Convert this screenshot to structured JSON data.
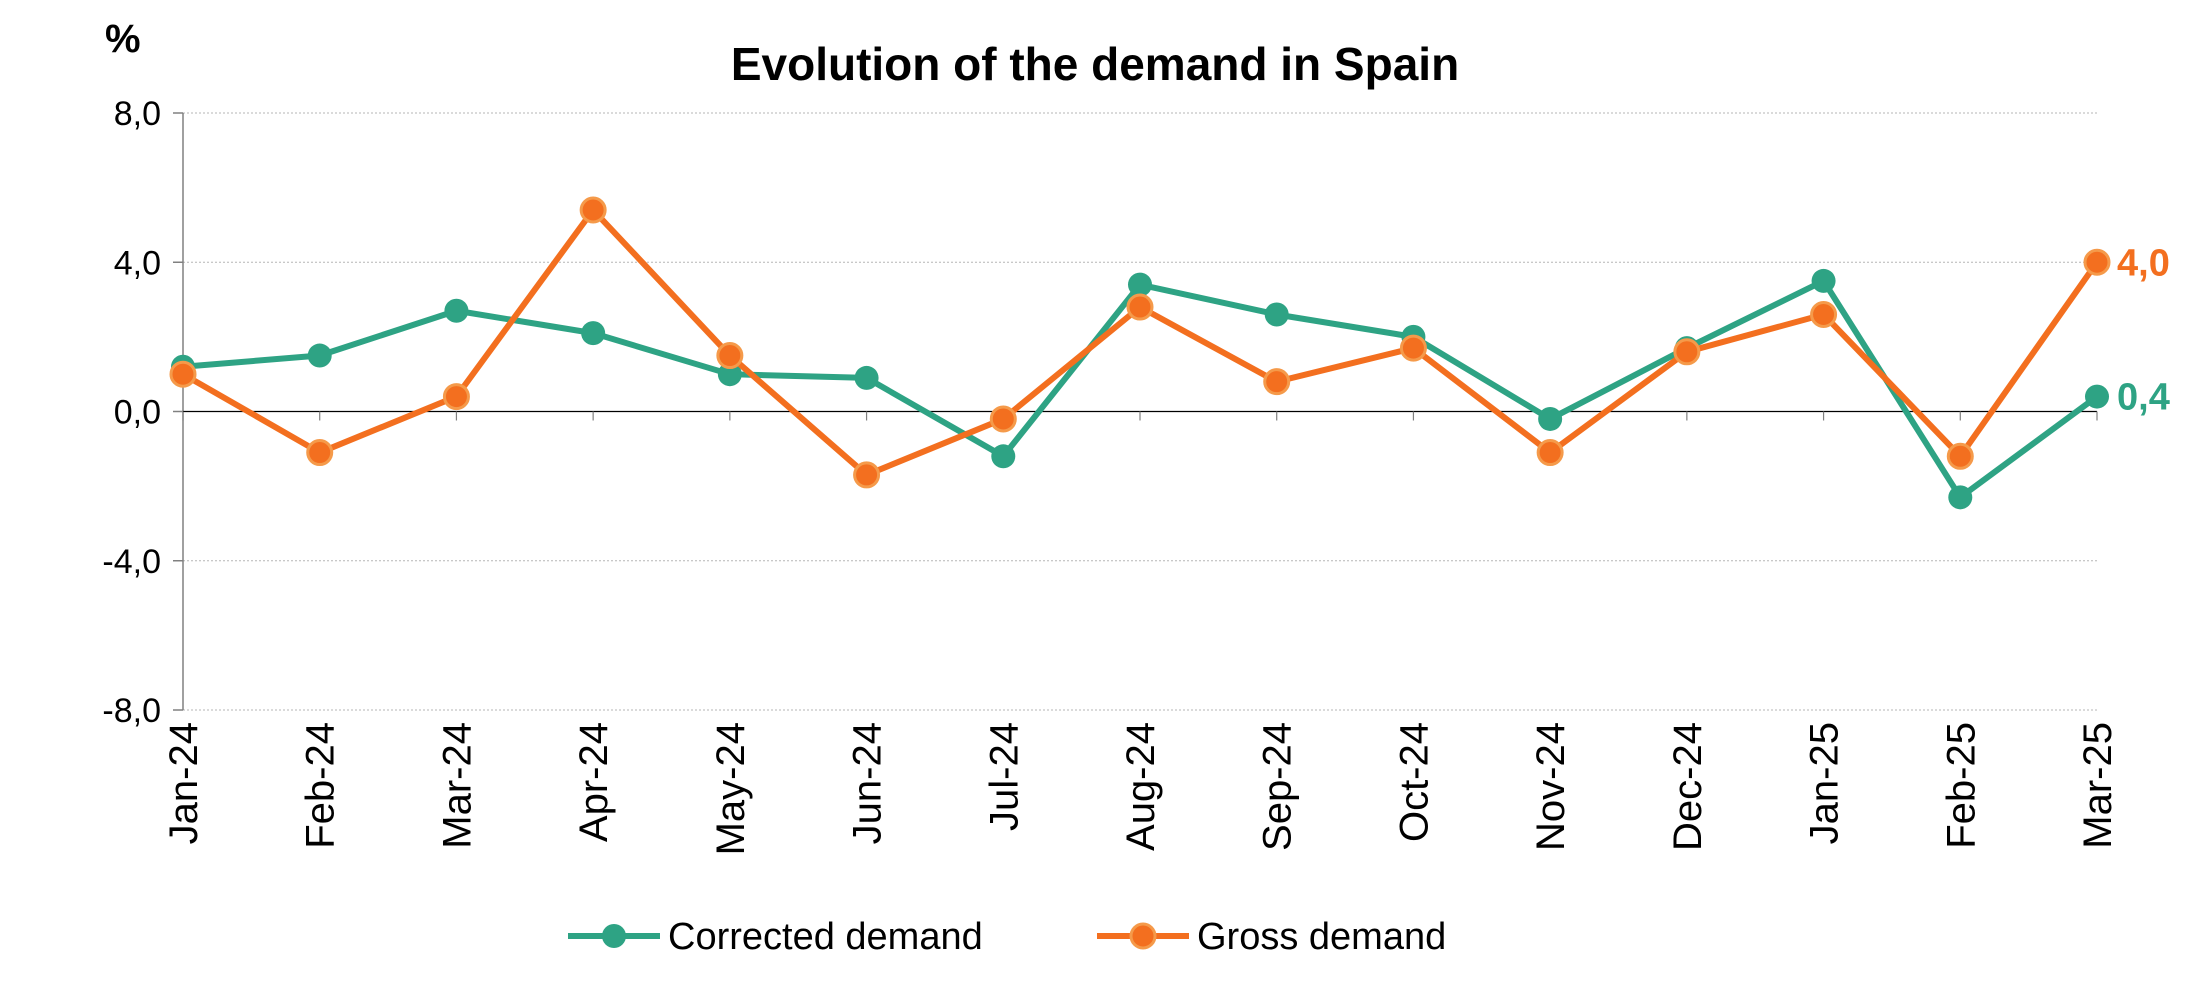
{
  "chart_data": {
    "type": "line",
    "title": "Evolution of the demand in Spain",
    "unit_label": "%",
    "xlabel": "",
    "ylabel": "",
    "ylim": [
      -8,
      8
    ],
    "yticks": [
      8,
      4,
      0,
      -4,
      -8
    ],
    "ytick_labels": [
      "8,0",
      "4,0",
      "0,0",
      "-4,0",
      "-8,0"
    ],
    "categories": [
      "Jan-24",
      "Feb-24",
      "Mar-24",
      "Apr-24",
      "May-24",
      "Jun-24",
      "Jul-24",
      "Aug-24",
      "Sep-24",
      "Oct-24",
      "Nov-24",
      "Dec-24",
      "Jan-25",
      "Feb-25",
      "Mar-25"
    ],
    "grid": true,
    "legend_position": "bottom-center",
    "series": [
      {
        "name": "Corrected demand",
        "color": "#2ea384",
        "values": [
          1.2,
          1.5,
          2.7,
          2.1,
          1.0,
          0.9,
          -1.2,
          3.4,
          2.6,
          2.0,
          -0.2,
          1.7,
          3.5,
          -2.3,
          0.4
        ],
        "end_label": "0,4"
      },
      {
        "name": "Gross demand",
        "color": "#f36f1f",
        "values": [
          1.0,
          -1.1,
          0.4,
          5.4,
          1.5,
          -1.7,
          -0.2,
          2.8,
          0.8,
          1.7,
          -1.1,
          1.6,
          2.6,
          -1.2,
          4.0
        ],
        "end_label": "4,0"
      }
    ]
  }
}
